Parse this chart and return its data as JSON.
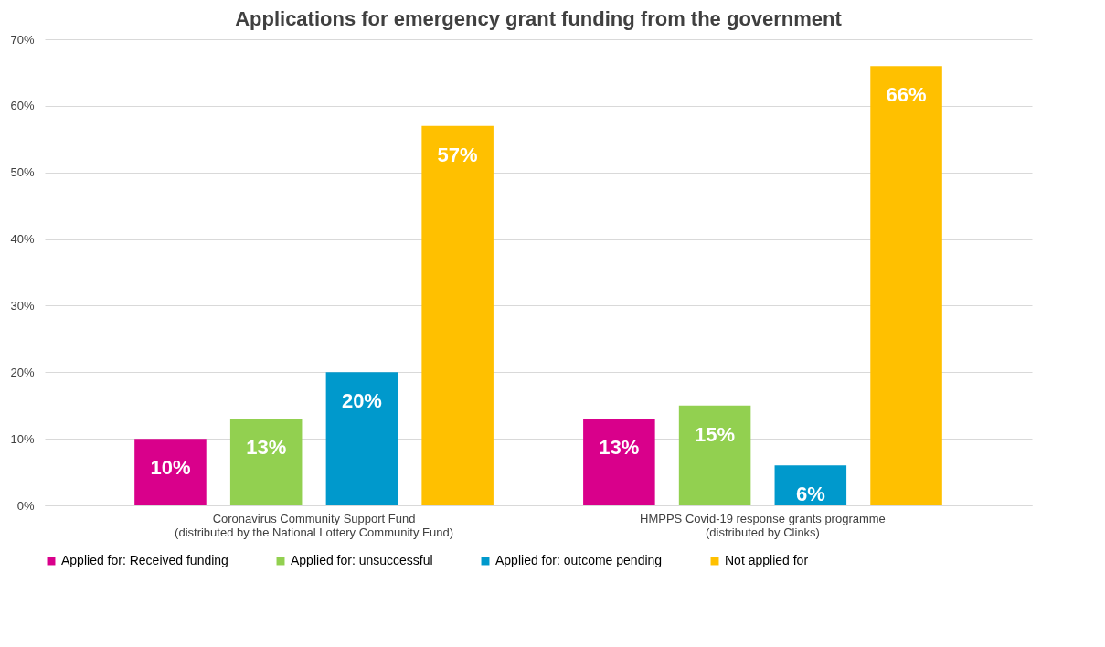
{
  "chart_data": {
    "type": "bar",
    "title": "Applications for emergency grant funding from the government",
    "categories": [
      "Coronavirus Community Support Fund\n(distributed by the National Lottery Community Fund)",
      "HMPPS Covid-19 response grants programme\n(distributed by Clinks)"
    ],
    "series": [
      {
        "name": "Applied for: Received funding",
        "color": "#d9008b",
        "values": [
          10,
          13
        ],
        "value_labels": [
          "10%",
          "13%"
        ]
      },
      {
        "name": "Applied for: unsuccessful",
        "color": "#92d050",
        "values": [
          13,
          15
        ],
        "value_labels": [
          "13%",
          "15%"
        ]
      },
      {
        "name": "Applied for: outcome pending",
        "color": "#0099cc",
        "values": [
          20,
          6
        ],
        "value_labels": [
          "20%",
          "6%"
        ]
      },
      {
        "name": "Not applied for",
        "color": "#ffc000",
        "values": [
          57,
          66
        ],
        "value_labels": [
          "57%",
          "66%"
        ]
      }
    ],
    "ylim": [
      0,
      70
    ],
    "yticks": [
      {
        "value": 0,
        "label": "0%"
      },
      {
        "value": 10,
        "label": "10%"
      },
      {
        "value": 20,
        "label": "20%"
      },
      {
        "value": 30,
        "label": "30%"
      },
      {
        "value": 40,
        "label": "40%"
      },
      {
        "value": 50,
        "label": "50%"
      },
      {
        "value": 60,
        "label": "60%"
      },
      {
        "value": 70,
        "label": "70%"
      }
    ],
    "grid": "y",
    "legend": "bottom"
  }
}
